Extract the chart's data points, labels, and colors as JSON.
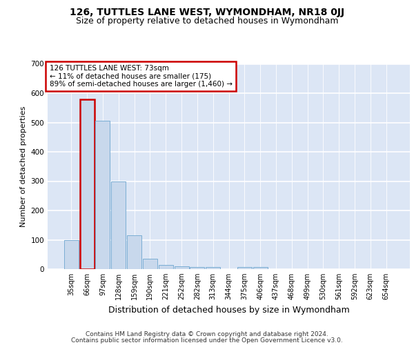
{
  "title1": "126, TUTTLES LANE WEST, WYMONDHAM, NR18 0JJ",
  "title2": "Size of property relative to detached houses in Wymondham",
  "xlabel": "Distribution of detached houses by size in Wymondham",
  "ylabel": "Number of detached properties",
  "footer1": "Contains HM Land Registry data © Crown copyright and database right 2024.",
  "footer2": "Contains public sector information licensed under the Open Government Licence v3.0.",
  "categories": [
    "35sqm",
    "66sqm",
    "97sqm",
    "128sqm",
    "159sqm",
    "190sqm",
    "221sqm",
    "252sqm",
    "282sqm",
    "313sqm",
    "344sqm",
    "375sqm",
    "406sqm",
    "437sqm",
    "468sqm",
    "499sqm",
    "530sqm",
    "561sqm",
    "592sqm",
    "623sqm",
    "654sqm"
  ],
  "values": [
    100,
    580,
    505,
    300,
    115,
    35,
    15,
    10,
    8,
    8,
    0,
    8,
    8,
    0,
    0,
    0,
    0,
    0,
    0,
    0,
    0
  ],
  "highlight_index": 1,
  "bar_color": "#c8d8ec",
  "bar_edge_color": "#7aadd4",
  "highlight_edge_color": "#cc0000",
  "annotation_line1": "126 TUTTLES LANE WEST: 73sqm",
  "annotation_line2": "← 11% of detached houses are smaller (175)",
  "annotation_line3": "89% of semi-detached houses are larger (1,460) →",
  "annotation_box_edge": "#cc0000",
  "annotation_box_face": "#ffffff",
  "ylim": [
    0,
    700
  ],
  "yticks": [
    0,
    100,
    200,
    300,
    400,
    500,
    600,
    700
  ],
  "bg_color": "#dce6f5",
  "grid_color": "#ffffff",
  "title1_fontsize": 10,
  "title2_fontsize": 9,
  "xlabel_fontsize": 9,
  "ylabel_fontsize": 8,
  "tick_fontsize": 7,
  "footer_fontsize": 6.5,
  "annotation_fontsize": 7.5
}
